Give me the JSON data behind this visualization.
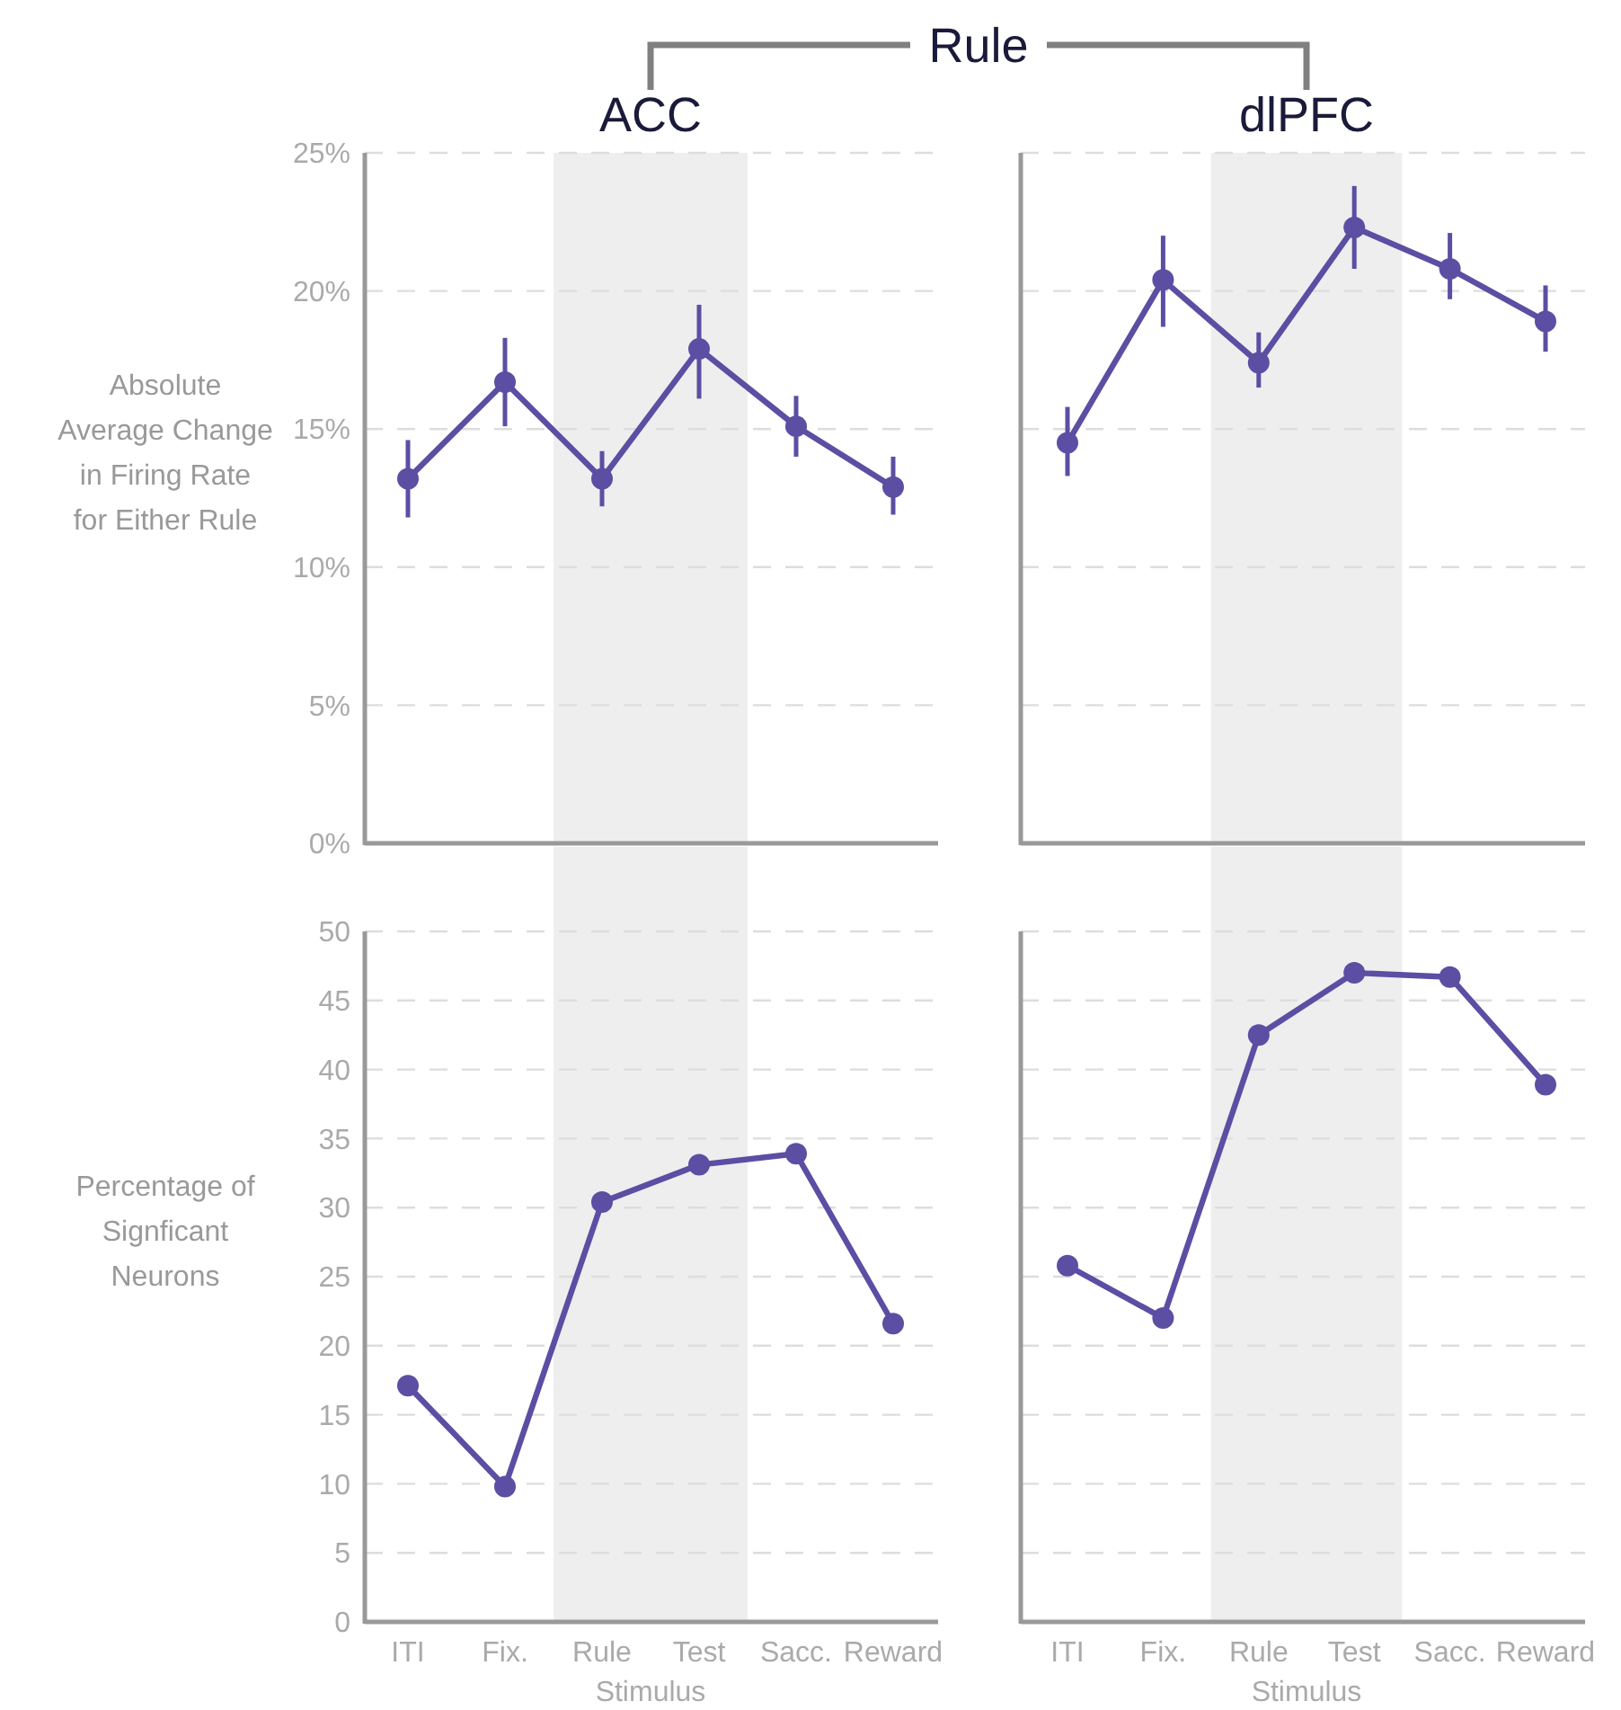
{
  "chart_data": [
    {
      "type": "line",
      "title": "ACC",
      "ylabel": "Absolute Average Change in Firing Rate for Either Rule",
      "annotations": [
        "Rule"
      ],
      "categories": [
        "ITI",
        "Fix.",
        "Rule",
        "Test",
        "Sacc.",
        "Reward"
      ],
      "series": [
        {
          "color": "#5b4ea3",
          "values": [
            13.2,
            16.7,
            13.2,
            17.9,
            15.1,
            12.9
          ],
          "errors": [
            [
              11.8,
              14.6
            ],
            [
              15.1,
              18.3
            ],
            [
              12.2,
              14.2
            ],
            [
              16.1,
              19.5
            ],
            [
              14.0,
              16.2
            ],
            [
              11.9,
              14.0
            ]
          ]
        }
      ],
      "ylim": [
        0,
        25
      ],
      "yticks": [
        {
          "value": 0,
          "label": "0%"
        },
        {
          "value": 5,
          "label": "5%"
        },
        {
          "value": 10,
          "label": "10%"
        },
        {
          "value": 15,
          "label": "15%"
        },
        {
          "value": 20,
          "label": "20%"
        },
        {
          "value": 25,
          "label": "25%"
        }
      ],
      "grid": "y",
      "tick_labels": "y",
      "marker": "circle",
      "line_style": "solid",
      "bands": [
        {
          "axis": "x",
          "from": "Rule",
          "to": "Test",
          "color": "#eeeeee"
        }
      ]
    },
    {
      "type": "line",
      "title": "dlPFC",
      "categories": [
        "ITI",
        "Fix.",
        "Rule",
        "Test",
        "Sacc.",
        "Reward"
      ],
      "series": [
        {
          "color": "#5b4ea3",
          "values": [
            14.5,
            20.4,
            17.4,
            22.3,
            20.8,
            18.9
          ],
          "errors": [
            [
              13.3,
              15.8
            ],
            [
              18.7,
              22.0
            ],
            [
              16.5,
              18.5
            ],
            [
              20.8,
              23.8
            ],
            [
              19.7,
              22.1
            ],
            [
              17.8,
              20.2
            ]
          ]
        }
      ],
      "ylim": [
        0,
        25
      ],
      "yticks": [
        {
          "value": 0,
          "label": "0%"
        },
        {
          "value": 5,
          "label": "5%"
        },
        {
          "value": 10,
          "label": "10%"
        },
        {
          "value": 15,
          "label": "15%"
        },
        {
          "value": 20,
          "label": "20%"
        },
        {
          "value": 25,
          "label": "25%"
        }
      ],
      "grid": "y",
      "tick_labels": false,
      "marker": "circle",
      "line_style": "solid",
      "bands": [
        {
          "axis": "x",
          "from": "Rule",
          "to": "Test",
          "color": "#eeeeee"
        }
      ]
    },
    {
      "type": "line",
      "xlabel": "Stimulus",
      "ylabel": "Percentage of Signficant Neurons",
      "categories": [
        "ITI",
        "Fix.",
        "Rule",
        "Test",
        "Sacc.",
        "Reward"
      ],
      "series": [
        {
          "color": "#5b4ea3",
          "values": [
            17.1,
            9.8,
            30.4,
            33.1,
            33.9,
            21.6
          ]
        }
      ],
      "ylim": [
        0,
        50
      ],
      "yticks": [
        0,
        5,
        10,
        15,
        20,
        25,
        30,
        35,
        40,
        45,
        50
      ],
      "grid": "y",
      "marker": "circle",
      "line_style": "solid",
      "bands": [
        {
          "axis": "x",
          "from": "Rule",
          "to": "Test",
          "color": "#eeeeee"
        }
      ]
    },
    {
      "type": "line",
      "xlabel": "Stimulus",
      "categories": [
        "ITI",
        "Fix.",
        "Rule",
        "Test",
        "Sacc.",
        "Reward"
      ],
      "series": [
        {
          "color": "#5b4ea3",
          "values": [
            25.8,
            22.0,
            42.5,
            47.0,
            46.7,
            38.9
          ]
        }
      ],
      "ylim": [
        0,
        50
      ],
      "yticks": [
        0,
        5,
        10,
        15,
        20,
        25,
        30,
        35,
        40,
        45,
        50
      ],
      "grid": "y",
      "tick_labels": "x",
      "marker": "circle",
      "line_style": "solid",
      "bands": [
        {
          "axis": "x",
          "from": "Rule",
          "to": "Test",
          "color": "#eeeeee"
        }
      ]
    }
  ]
}
